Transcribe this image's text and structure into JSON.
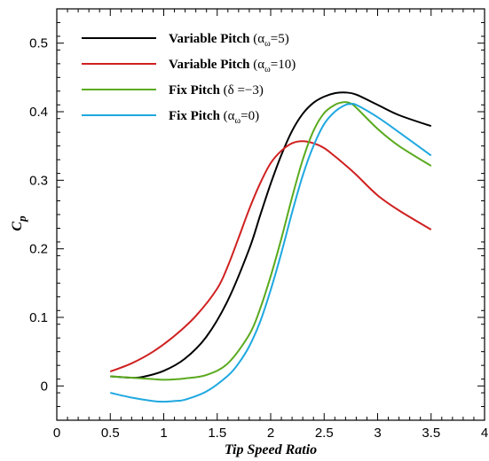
{
  "chart_data": {
    "type": "line",
    "xlabel": "Tip Speed Ratio",
    "ylabel": "C_p",
    "xlim": [
      0,
      4
    ],
    "ylim": [
      -0.05,
      0.55
    ],
    "xticks": [
      0,
      0.5,
      1,
      1.5,
      2,
      2.5,
      3,
      3.5,
      4
    ],
    "xtick_labels": [
      "0",
      "0.5",
      "1",
      "1.5",
      "2",
      "2.5",
      "3",
      "3.5",
      "4"
    ],
    "yticks": [
      0,
      0.1,
      0.2,
      0.3,
      0.4,
      0.5
    ],
    "ytick_labels": [
      "0",
      "0.1",
      "0.2",
      "0.3",
      "0.4",
      "0.5"
    ],
    "grid": false,
    "legend_position": "top-left",
    "series": [
      {
        "name": "Variable Pitch (α_ω=5)",
        "color": "#000000",
        "x": [
          0.5,
          0.7,
          0.8,
          1.0,
          1.2,
          1.4,
          1.6,
          1.8,
          1.9,
          2.0,
          2.1,
          2.2,
          2.3,
          2.4,
          2.5,
          2.6,
          2.7,
          2.8,
          3.0,
          3.2,
          3.5
        ],
        "y": [
          0.014,
          0.012,
          0.013,
          0.022,
          0.04,
          0.072,
          0.125,
          0.2,
          0.248,
          0.295,
          0.337,
          0.372,
          0.397,
          0.413,
          0.422,
          0.427,
          0.428,
          0.425,
          0.41,
          0.395,
          0.379
        ]
      },
      {
        "name": "Variable Pitch (α_ω=10)",
        "color": "#d02020",
        "x": [
          0.5,
          0.7,
          0.9,
          1.1,
          1.3,
          1.5,
          1.6,
          1.7,
          1.8,
          1.9,
          2.0,
          2.1,
          2.2,
          2.3,
          2.4,
          2.5,
          2.6,
          2.7,
          2.8,
          3.0,
          3.2,
          3.5
        ],
        "y": [
          0.021,
          0.033,
          0.05,
          0.073,
          0.102,
          0.142,
          0.175,
          0.216,
          0.258,
          0.295,
          0.325,
          0.343,
          0.354,
          0.357,
          0.354,
          0.347,
          0.335,
          0.322,
          0.308,
          0.278,
          0.256,
          0.228
        ]
      },
      {
        "name": "Fix Pitch (δ =−3)",
        "color": "#5aaa1e",
        "x": [
          0.5,
          0.7,
          0.9,
          1.0,
          1.2,
          1.4,
          1.6,
          1.8,
          1.9,
          2.0,
          2.1,
          2.2,
          2.3,
          2.4,
          2.5,
          2.6,
          2.65,
          2.7,
          2.75,
          2.8,
          3.0,
          3.2,
          3.5
        ],
        "y": [
          0.014,
          0.012,
          0.01,
          0.009,
          0.011,
          0.016,
          0.033,
          0.075,
          0.112,
          0.16,
          0.215,
          0.275,
          0.33,
          0.372,
          0.398,
          0.41,
          0.413,
          0.414,
          0.412,
          0.406,
          0.375,
          0.35,
          0.321
        ]
      },
      {
        "name": "Fix Pitch (α_ω=0)",
        "color": "#1fa8e0",
        "x": [
          0.5,
          0.7,
          0.9,
          1.0,
          1.1,
          1.2,
          1.4,
          1.6,
          1.7,
          1.8,
          1.9,
          2.0,
          2.1,
          2.2,
          2.3,
          2.4,
          2.5,
          2.6,
          2.7,
          2.75,
          2.8,
          3.0,
          3.2,
          3.5
        ],
        "y": [
          -0.01,
          -0.017,
          -0.022,
          -0.023,
          -0.022,
          -0.02,
          -0.008,
          0.015,
          0.033,
          0.058,
          0.093,
          0.14,
          0.194,
          0.253,
          0.307,
          0.35,
          0.382,
          0.4,
          0.41,
          0.411,
          0.41,
          0.392,
          0.37,
          0.336
        ]
      }
    ]
  },
  "legend": [
    {
      "main": "Variable Pitch ",
      "paren_open": "(α",
      "sub": "ω",
      "paren_close": "=5)"
    },
    {
      "main": "Variable Pitch ",
      "paren_open": "(α",
      "sub": "ω",
      "paren_close": "=10)"
    },
    {
      "main": "Fix Pitch ",
      "paren_open": "(δ =−3)",
      "sub": "",
      "paren_close": ""
    },
    {
      "main": "Fix Pitch ",
      "paren_open": "(α",
      "sub": "ω",
      "paren_close": "=0)"
    }
  ],
  "ylabel_display": {
    "main": "C",
    "sub": "p"
  }
}
